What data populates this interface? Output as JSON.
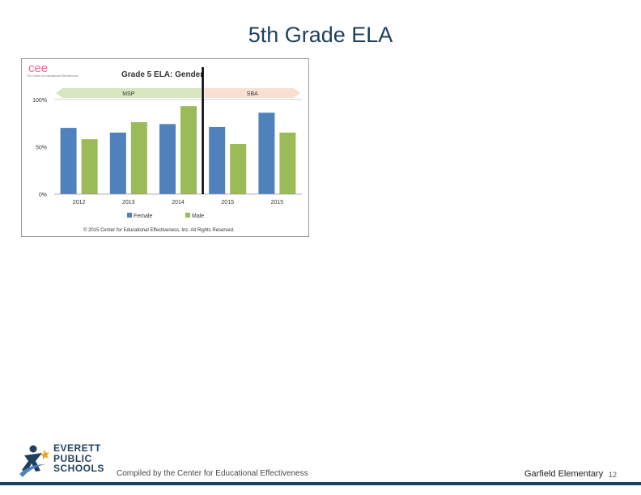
{
  "slide": {
    "title": "5th Grade ELA"
  },
  "chart_data": {
    "type": "bar",
    "title": "Grade 5 ELA: Gender",
    "logo_text": "cee",
    "logo_subtitle": "The Center for Educational Effectiveness",
    "categories": [
      "2012",
      "2013",
      "2014",
      "2015",
      "2015"
    ],
    "series": [
      {
        "name": "Female",
        "color": "#4f81bd",
        "values": [
          70,
          65,
          74,
          71,
          86
        ]
      },
      {
        "name": "Male",
        "color": "#9bbb59",
        "values": [
          58,
          76,
          93,
          53,
          65
        ]
      }
    ],
    "yticks": [
      "100%",
      "50%",
      "0%"
    ],
    "ytick_values": [
      100,
      50,
      0
    ],
    "ylim": [
      0,
      100
    ],
    "divider_after_index": 2,
    "period_bands": [
      {
        "label": "MSP",
        "color": "#d8e6c2",
        "from_index": 0,
        "to_index": 2
      },
      {
        "label": "SBA",
        "color": "#f8dfd2",
        "from_index": 3,
        "to_index": 4
      }
    ],
    "copyright": "© 2015 Center for Educational Effectiveness, Inc. All Rights Reserved.",
    "xlabel": "",
    "ylabel": "",
    "legend_position": "bottom"
  },
  "footer": {
    "logo_lines": [
      "EVERETT",
      "PUBLIC",
      "SCHOOLS"
    ],
    "credit": "Compiled by the Center for Educational Effectiveness",
    "school": "Garfield Elementary",
    "page": "12"
  },
  "colors": {
    "title": "#1f3f5f",
    "rule": "#1f3f5f"
  }
}
